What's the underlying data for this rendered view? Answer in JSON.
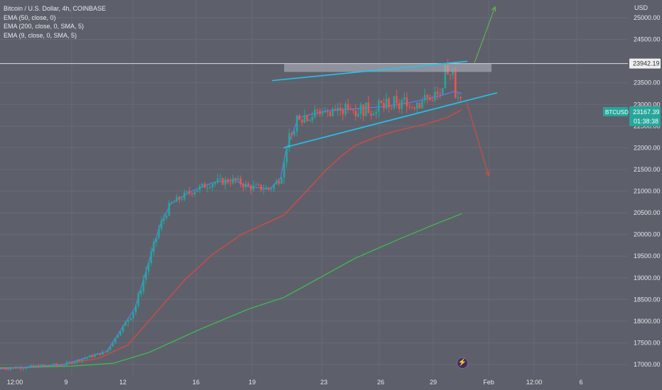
{
  "legend": {
    "title": "Bitcoin / U.S. Dollar, 4h, COINBASE",
    "ema1": "EMA (50, close, 0)",
    "ema2": "EMA (200, close, 0, SMA, 5)",
    "ema3": "EMA (9, close, 0, SMA, 5)"
  },
  "price_axis": {
    "unit": "USD",
    "ticks": [
      "25000.00",
      "24500.00",
      "23500.00",
      "23000.00",
      "22500.00",
      "22000.00",
      "21500.00",
      "21000.00",
      "20500.00",
      "20000.00",
      "19500.00",
      "19000.00",
      "18500.00",
      "18000.00",
      "17500.00",
      "17000.00"
    ],
    "horizontal_line_label": "23942.19",
    "symbol_badge": "BTCUSD",
    "last_price": "23167.39",
    "countdown": "01:38:38"
  },
  "time_axis": {
    "ticks": [
      "12:00",
      "9",
      "12",
      "16",
      "19",
      "23",
      "26",
      "29",
      "Feb",
      "12:00",
      "6"
    ]
  },
  "colors": {
    "background": "#5d606b",
    "up": "#26a69a",
    "down": "#ef5350",
    "ema9": "#5c7cfa",
    "ema50": "#e8453c",
    "ema200": "#3fbf4f",
    "trendline": "#23c4ea",
    "arrow_up": "#66bb4a",
    "arrow_down": "#e04a3f"
  },
  "chart_data": {
    "type": "candlestick",
    "title": "Bitcoin / U.S. Dollar, 4h, COINBASE",
    "ylim": [
      16900,
      25400
    ],
    "series": [
      {
        "name": "EMA (50, close, 0)",
        "points": [
          [
            0,
            16900
          ],
          [
            80,
            16960
          ],
          [
            140,
            17150
          ],
          [
            180,
            17450
          ],
          [
            220,
            18200
          ],
          [
            260,
            18950
          ],
          [
            300,
            19550
          ],
          [
            340,
            20000
          ],
          [
            380,
            20300
          ],
          [
            400,
            20450
          ],
          [
            420,
            20800
          ],
          [
            440,
            21150
          ],
          [
            460,
            21500
          ],
          [
            480,
            21800
          ],
          [
            500,
            22050
          ],
          [
            530,
            22250
          ],
          [
            560,
            22400
          ],
          [
            600,
            22550
          ],
          [
            630,
            22700
          ],
          [
            650,
            22880
          ]
        ]
      },
      {
        "name": "EMA (200, close, 0, SMA, 5)",
        "points": [
          [
            0,
            16920
          ],
          [
            100,
            16960
          ],
          [
            160,
            17030
          ],
          [
            210,
            17280
          ],
          [
            280,
            17800
          ],
          [
            350,
            18280
          ],
          [
            400,
            18550
          ],
          [
            450,
            19000
          ],
          [
            500,
            19450
          ],
          [
            560,
            19880
          ],
          [
            610,
            20220
          ],
          [
            650,
            20480
          ]
        ]
      },
      {
        "name": "EMA (9, close, 0, SMA, 5)",
        "points": [
          [
            0,
            16900
          ],
          [
            90,
            17000
          ],
          [
            150,
            17300
          ],
          [
            190,
            18300
          ],
          [
            210,
            19400
          ],
          [
            225,
            20200
          ],
          [
            240,
            20700
          ],
          [
            270,
            21000
          ],
          [
            300,
            21200
          ],
          [
            330,
            21250
          ],
          [
            350,
            21100
          ],
          [
            380,
            21050
          ],
          [
            395,
            21300
          ],
          [
            402,
            21900
          ],
          [
            420,
            22700
          ],
          [
            460,
            22850
          ],
          [
            500,
            22900
          ],
          [
            540,
            22950
          ],
          [
            580,
            23050
          ],
          [
            620,
            23200
          ],
          [
            640,
            23300
          ],
          [
            650,
            23250
          ]
        ]
      }
    ],
    "annotations": {
      "horizontal_line": 23942.19,
      "resistance_box": [
        23750,
        23950
      ],
      "upper_trendline": [
        [
          383,
          23550
        ],
        [
          658,
          23995
        ]
      ],
      "lower_trendline": [
        [
          399,
          22000
        ],
        [
          700,
          23270
        ]
      ],
      "arrow_up_target": 25250,
      "arrow_down_target": 21350
    },
    "x_ticks": [
      "12:00",
      "9",
      "12",
      "16",
      "19",
      "23",
      "26",
      "29",
      "Feb",
      "12:00",
      "6"
    ],
    "y_ticks": [
      25000,
      24500,
      23500,
      23000,
      22500,
      22000,
      21500,
      21000,
      20500,
      20000,
      19500,
      19000,
      18500,
      18000,
      17500,
      17000
    ]
  }
}
